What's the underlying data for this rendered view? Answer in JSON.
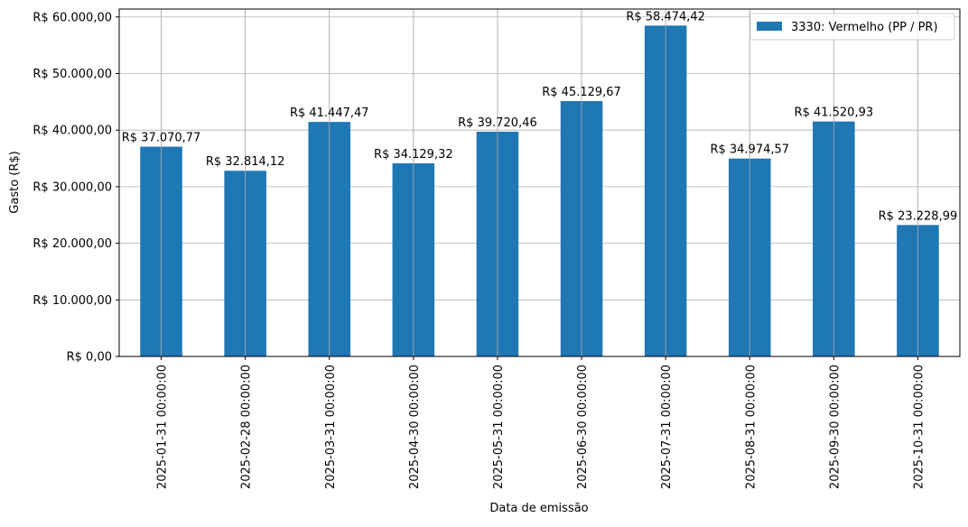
{
  "chart_data": {
    "type": "bar",
    "categories": [
      "2025-01-31 00:00:00",
      "2025-02-28 00:00:00",
      "2025-03-31 00:00:00",
      "2025-04-30 00:00:00",
      "2025-05-31 00:00:00",
      "2025-06-30 00:00:00",
      "2025-07-31 00:00:00",
      "2025-08-31 00:00:00",
      "2025-09-30 00:00:00",
      "2025-10-31 00:00:00"
    ],
    "series": [
      {
        "name": "3330: Vermelho (PP / PR)",
        "color": "#1f77b4",
        "values": [
          37070.77,
          32814.12,
          41447.47,
          34129.32,
          39720.46,
          45129.67,
          58474.42,
          34974.57,
          41520.93,
          23228.99
        ],
        "labels": [
          "R$ 37.070,77",
          "R$ 32.814,12",
          "R$ 41.447,47",
          "R$ 34.129,32",
          "R$ 39.720,46",
          "R$ 45.129,67",
          "R$ 58.474,42",
          "R$ 34.974,57",
          "R$ 41.520,93",
          "R$ 23.228,99"
        ]
      }
    ],
    "xlabel": "Data de emissão",
    "ylabel": "Gasto (R$)",
    "ylim": [
      0,
      61399.14
    ],
    "yticks": [
      0,
      10000,
      20000,
      30000,
      40000,
      50000,
      60000
    ],
    "ytick_labels": [
      "R$ 0,00",
      "R$ 10.000,00",
      "R$ 20.000,00",
      "R$ 30.000,00",
      "R$ 40.000,00",
      "R$ 50.000,00",
      "R$ 60.000,00"
    ],
    "grid": true,
    "legend_position": "top-right"
  }
}
